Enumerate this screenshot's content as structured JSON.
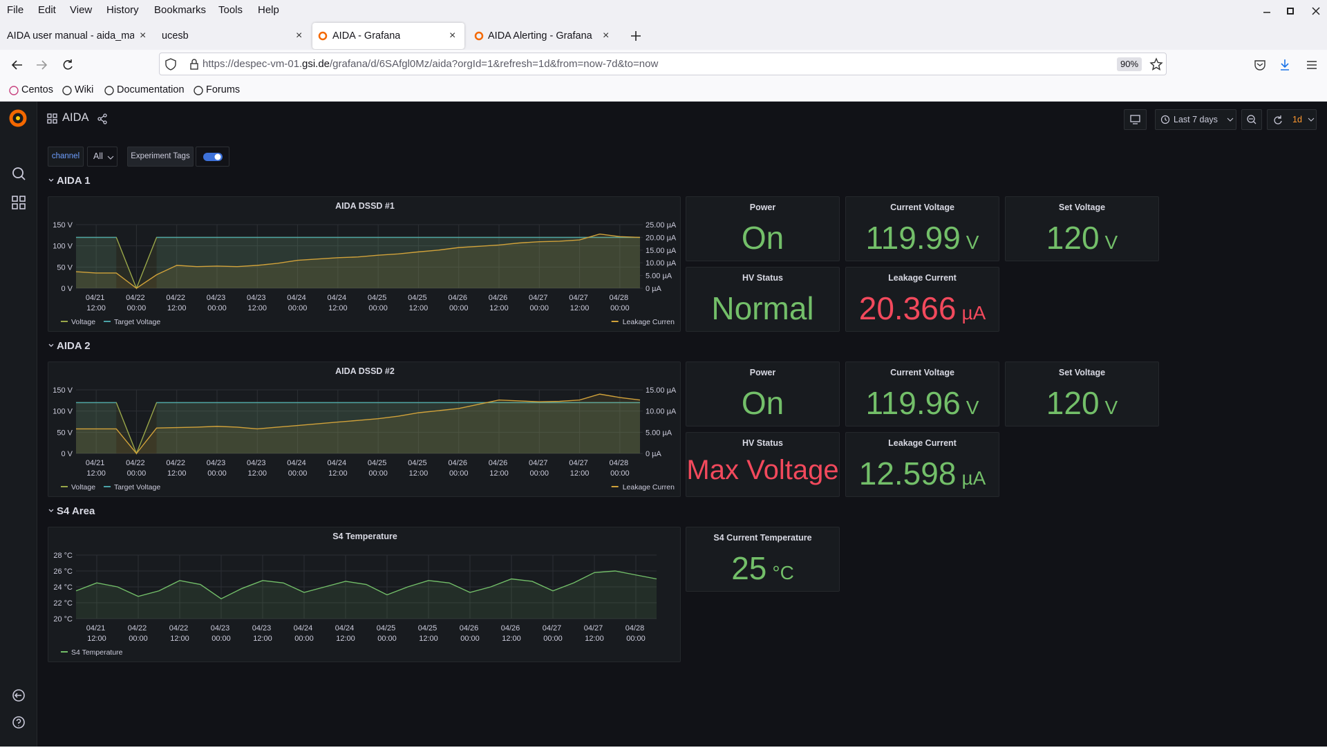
{
  "browser": {
    "menu": [
      "File",
      "Edit",
      "View",
      "History",
      "Bookmarks",
      "Tools",
      "Help"
    ],
    "tabs": [
      "AIDA user manual - aida_man",
      "ucesb",
      "AIDA - Grafana",
      "AIDA Alerting - Grafana"
    ],
    "url": {
      "prefix": "https://despec-vm-01.",
      "domain": "gsi.de",
      "path": "/grafana/d/6SAfgl0Mz/aida?orgId=1&refresh=1d&from=now-7d&to=now"
    },
    "zoom": "90%",
    "bookmarks": [
      "Centos",
      "Wiki",
      "Documentation",
      "Forums"
    ]
  },
  "dashboard": {
    "title": "AIDA",
    "variable_label": "channel",
    "variable_value": "All",
    "annotation_toggle": "Experiment Tags",
    "time_range": "Last 7 days",
    "refresh": "1d",
    "rows": [
      {
        "title": "AIDA 1",
        "chart_data": {
          "type": "line",
          "title": "AIDA DSSD #1",
          "grid": true,
          "x": [
            "04/21 06:00",
            "04/21 12:00",
            "04/21 18:00",
            "04/22 00:00",
            "04/22 06:00",
            "04/22 12:00",
            "04/22 18:00",
            "04/23 00:00",
            "04/23 06:00",
            "04/23 12:00",
            "04/23 18:00",
            "04/24 00:00",
            "04/24 06:00",
            "04/24 12:00",
            "04/24 18:00",
            "04/25 00:00",
            "04/25 06:00",
            "04/25 12:00",
            "04/25 18:00",
            "04/26 00:00",
            "04/26 06:00",
            "04/26 12:00",
            "04/26 18:00",
            "04/27 00:00",
            "04/27 06:00",
            "04/27 12:00",
            "04/27 18:00",
            "04/28 00:00",
            "04/28 06:00"
          ],
          "xticks": [
            "04/21 12:00",
            "04/22 00:00",
            "04/22 12:00",
            "04/23 00:00",
            "04/23 12:00",
            "04/24 00:00",
            "04/24 12:00",
            "04/25 00:00",
            "04/25 12:00",
            "04/26 00:00",
            "04/26 12:00",
            "04/27 00:00",
            "04/27 12:00",
            "04/28 00:00"
          ],
          "ylim": [
            0,
            150
          ],
          "yticks": [
            {
              "value": 0,
              "label": "0 V"
            },
            {
              "value": 50,
              "label": "50 V"
            },
            {
              "value": 100,
              "label": "100 V"
            },
            {
              "value": 150,
              "label": "150 V"
            }
          ],
          "y2lim": [
            0,
            25
          ],
          "y2ticks": [
            {
              "value": 0,
              "label": "0 µA"
            },
            {
              "value": 5,
              "label": "5.00 µA"
            },
            {
              "value": 10,
              "label": "10.00 µA"
            },
            {
              "value": 15,
              "label": "15.00 µA"
            },
            {
              "value": 20,
              "label": "20.00 µA"
            },
            {
              "value": 25,
              "label": "25.00 µA"
            }
          ],
          "series": [
            {
              "name": "Voltage",
              "color": "#9aa84a",
              "values": [
                120,
                120,
                120,
                0,
                120,
                120,
                120,
                120,
                120,
                120,
                120,
                120,
                120,
                120,
                120,
                120,
                120,
                120,
                120,
                120,
                120,
                120,
                120,
                120,
                120,
                120,
                120,
                120,
                120
              ]
            },
            {
              "name": "Target Voltage",
              "color": "#4aa3a8",
              "values": [
                120,
                120,
                120,
                null,
                120,
                120,
                120,
                120,
                120,
                120,
                120,
                120,
                120,
                120,
                120,
                120,
                120,
                120,
                120,
                120,
                120,
                120,
                120,
                120,
                120,
                120,
                120,
                120,
                120
              ]
            },
            {
              "name": "Leakage Curren",
              "color": "#d1a23a",
              "axis": "y2",
              "values": [
                6.5,
                6,
                6,
                0,
                5.3,
                9,
                8.5,
                8.7,
                8.5,
                9,
                9.8,
                11,
                11.5,
                12,
                12.3,
                13,
                13.5,
                14.3,
                15,
                16,
                16.5,
                17,
                17.8,
                18.3,
                18.5,
                19,
                21.3,
                20.3,
                20
              ]
            }
          ]
        },
        "stats": [
          {
            "title": "Power",
            "value": "On",
            "color": "#73bf69"
          },
          {
            "title": "Current Voltage",
            "value": 119.99,
            "unit": "V",
            "color": "#73bf69"
          },
          {
            "title": "Set Voltage",
            "value": 120,
            "unit": "V",
            "color": "#73bf69"
          },
          {
            "title": "HV Status",
            "value": "Normal",
            "color": "#73bf69"
          },
          {
            "title": "Leakage Current",
            "value": 20.366,
            "unit": "µA",
            "color": "#f2495c"
          }
        ]
      },
      {
        "title": "AIDA 2",
        "chart_data": {
          "type": "line",
          "title": "AIDA DSSD #2",
          "grid": true,
          "x": [
            "04/21 06:00",
            "04/21 12:00",
            "04/21 18:00",
            "04/22 00:00",
            "04/22 06:00",
            "04/22 12:00",
            "04/22 18:00",
            "04/23 00:00",
            "04/23 06:00",
            "04/23 12:00",
            "04/23 18:00",
            "04/24 00:00",
            "04/24 06:00",
            "04/24 12:00",
            "04/24 18:00",
            "04/25 00:00",
            "04/25 06:00",
            "04/25 12:00",
            "04/25 18:00",
            "04/26 00:00",
            "04/26 06:00",
            "04/26 12:00",
            "04/26 18:00",
            "04/27 00:00",
            "04/27 06:00",
            "04/27 12:00",
            "04/27 18:00",
            "04/28 00:00",
            "04/28 06:00"
          ],
          "xticks": [
            "04/21 12:00",
            "04/22 00:00",
            "04/22 12:00",
            "04/23 00:00",
            "04/23 12:00",
            "04/24 00:00",
            "04/24 12:00",
            "04/25 00:00",
            "04/25 12:00",
            "04/26 00:00",
            "04/26 12:00",
            "04/27 00:00",
            "04/27 12:00",
            "04/28 00:00"
          ],
          "ylim": [
            0,
            150
          ],
          "yticks": [
            {
              "value": 0,
              "label": "0 V"
            },
            {
              "value": 50,
              "label": "50 V"
            },
            {
              "value": 100,
              "label": "100 V"
            },
            {
              "value": 150,
              "label": "150 V"
            }
          ],
          "y2lim": [
            0,
            15
          ],
          "y2ticks": [
            {
              "value": 0,
              "label": "0 µA"
            },
            {
              "value": 5,
              "label": "5.00 µA"
            },
            {
              "value": 10,
              "label": "10.00 µA"
            },
            {
              "value": 15,
              "label": "15.00 µA"
            }
          ],
          "series": [
            {
              "name": "Voltage",
              "color": "#9aa84a",
              "values": [
                120,
                120,
                120,
                0,
                120,
                120,
                120,
                120,
                120,
                120,
                120,
                120,
                120,
                120,
                120,
                120,
                120,
                120,
                120,
                120,
                120,
                120,
                120,
                120,
                120,
                120,
                120,
                120,
                120
              ]
            },
            {
              "name": "Target Voltage",
              "color": "#4aa3a8",
              "values": [
                120,
                120,
                120,
                null,
                120,
                120,
                120,
                120,
                120,
                120,
                120,
                120,
                120,
                120,
                120,
                120,
                120,
                120,
                120,
                120,
                120,
                120,
                120,
                120,
                120,
                120,
                120,
                120,
                120
              ]
            },
            {
              "name": "Leakage Curren",
              "color": "#d1a23a",
              "axis": "y2",
              "values": [
                5.8,
                5.8,
                5.8,
                0,
                6,
                6.1,
                6.2,
                6.4,
                6.2,
                5.8,
                6.2,
                6.6,
                7,
                7.4,
                7.8,
                8.2,
                8.8,
                9.6,
                10.1,
                10.6,
                11.6,
                12.6,
                12.4,
                12.2,
                12.3,
                12.6,
                14,
                13.2,
                12.6
              ]
            }
          ]
        },
        "stats": [
          {
            "title": "Power",
            "value": "On",
            "color": "#73bf69"
          },
          {
            "title": "Current Voltage",
            "value": 119.96,
            "unit": "V",
            "color": "#73bf69"
          },
          {
            "title": "Set Voltage",
            "value": 120,
            "unit": "V",
            "color": "#73bf69"
          },
          {
            "title": "HV Status",
            "value": "Max Voltage",
            "color": "#f2495c"
          },
          {
            "title": "Leakage Current",
            "value": 12.598,
            "unit": "µA",
            "color": "#73bf69"
          }
        ]
      },
      {
        "title": "S4 Area",
        "chart_data": {
          "type": "line",
          "title": "S4 Temperature",
          "grid": true,
          "x": [
            "04/21 06:00",
            "04/21 12:00",
            "04/21 18:00",
            "04/22 00:00",
            "04/22 06:00",
            "04/22 12:00",
            "04/22 18:00",
            "04/23 00:00",
            "04/23 06:00",
            "04/23 12:00",
            "04/23 18:00",
            "04/24 00:00",
            "04/24 06:00",
            "04/24 12:00",
            "04/24 18:00",
            "04/25 00:00",
            "04/25 06:00",
            "04/25 12:00",
            "04/25 18:00",
            "04/26 00:00",
            "04/26 06:00",
            "04/26 12:00",
            "04/26 18:00",
            "04/27 00:00",
            "04/27 06:00",
            "04/27 12:00",
            "04/27 18:00",
            "04/28 00:00",
            "04/28 06:00"
          ],
          "xticks": [
            "04/21 12:00",
            "04/22 00:00",
            "04/22 12:00",
            "04/23 00:00",
            "04/23 12:00",
            "04/24 00:00",
            "04/24 12:00",
            "04/25 00:00",
            "04/25 12:00",
            "04/26 00:00",
            "04/26 12:00",
            "04/27 00:00",
            "04/27 12:00",
            "04/28 00:00"
          ],
          "ylim": [
            20,
            28
          ],
          "yticks": [
            {
              "value": 20,
              "label": "20 °C"
            },
            {
              "value": 22,
              "label": "22 °C"
            },
            {
              "value": 24,
              "label": "24 °C"
            },
            {
              "value": 26,
              "label": "26 °C"
            },
            {
              "value": 28,
              "label": "28 °C"
            }
          ],
          "series": [
            {
              "name": "S4 Temperature",
              "color": "#73bf69",
              "values": [
                23.5,
                24.5,
                24,
                22.8,
                23.5,
                24.8,
                24.3,
                22.5,
                23.8,
                24.8,
                24.5,
                23.3,
                24,
                24.7,
                24.3,
                23,
                24,
                24.8,
                24.5,
                23.3,
                24,
                25,
                24.7,
                23.5,
                24.5,
                25.8,
                26,
                25.5,
                25
              ]
            }
          ]
        },
        "stats": [
          {
            "title": "S4 Current Temperature",
            "value": 25,
            "unit": "°C",
            "color": "#73bf69"
          }
        ]
      }
    ]
  }
}
